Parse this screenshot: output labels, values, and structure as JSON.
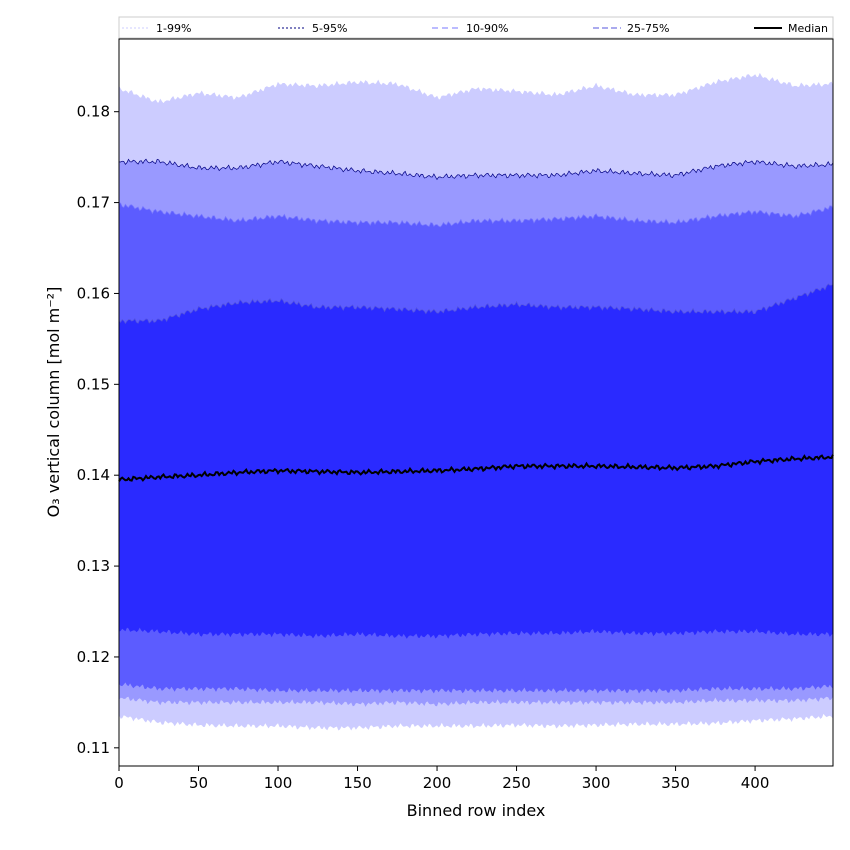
{
  "chart_data": {
    "type": "area",
    "xlabel": "Binned row index",
    "ylabel": "O₃ vertical column [mol m⁻²]",
    "xlim": [
      0,
      449
    ],
    "ylim": [
      0.108,
      0.188
    ],
    "x_ticks": [
      0,
      50,
      100,
      150,
      200,
      250,
      300,
      350,
      400
    ],
    "y_ticks": [
      0.11,
      0.12,
      0.13,
      0.14,
      0.15,
      0.16,
      0.17,
      0.18
    ],
    "y_tick_labels": [
      "0.11",
      "0.12",
      "0.13",
      "0.14",
      "0.15",
      "0.16",
      "0.17",
      "0.18"
    ],
    "legend_position": "top, horizontal",
    "x": [
      0,
      25,
      50,
      75,
      100,
      125,
      150,
      175,
      200,
      225,
      250,
      275,
      300,
      325,
      350,
      375,
      400,
      425,
      449
    ],
    "bands": [
      {
        "name": "1-99%",
        "color": "#ccccff",
        "line_color": "#ccccff",
        "dash": "2,2",
        "lower": [
          0.1135,
          0.1128,
          0.1125,
          0.1124,
          0.1124,
          0.1122,
          0.1122,
          0.1124,
          0.1124,
          0.1124,
          0.1125,
          0.1124,
          0.1125,
          0.1126,
          0.1126,
          0.1127,
          0.113,
          0.1132,
          0.1135
        ],
        "upper": [
          0.1825,
          0.181,
          0.182,
          0.1815,
          0.183,
          0.1828,
          0.1832,
          0.183,
          0.1815,
          0.1825,
          0.1822,
          0.1818,
          0.1828,
          0.1818,
          0.1818,
          0.1832,
          0.184,
          0.1828,
          0.183
        ]
      },
      {
        "name": "5-95%",
        "color": "#9999ff",
        "line_color": "#000080",
        "dash": "2,2",
        "lower": [
          0.1155,
          0.115,
          0.115,
          0.115,
          0.115,
          0.115,
          0.1148,
          0.115,
          0.1148,
          0.115,
          0.115,
          0.115,
          0.115,
          0.115,
          0.115,
          0.1152,
          0.1152,
          0.1152,
          0.1155
        ],
        "upper": [
          0.1745,
          0.1745,
          0.1738,
          0.1738,
          0.1745,
          0.174,
          0.1735,
          0.1732,
          0.1728,
          0.173,
          0.173,
          0.173,
          0.1735,
          0.1732,
          0.173,
          0.174,
          0.1745,
          0.174,
          0.1742
        ]
      },
      {
        "name": "10-90%",
        "color": "#5c5cff",
        "line_color": "#7777ff",
        "dash": "6,4",
        "lower": [
          0.117,
          0.1165,
          0.1165,
          0.1165,
          0.1163,
          0.1163,
          0.1163,
          0.1163,
          0.1163,
          0.1163,
          0.1163,
          0.1163,
          0.1163,
          0.1163,
          0.1163,
          0.1165,
          0.1165,
          0.1165,
          0.1168
        ],
        "upper": [
          0.1698,
          0.169,
          0.1685,
          0.168,
          0.1685,
          0.168,
          0.1678,
          0.1678,
          0.1675,
          0.168,
          0.168,
          0.1682,
          0.1685,
          0.168,
          0.1678,
          0.1685,
          0.169,
          0.1685,
          0.1695
        ]
      },
      {
        "name": "25-75%",
        "color": "#2a2aff",
        "line_color": "#5555dd",
        "dash": "6,3",
        "lower": [
          0.123,
          0.1228,
          0.1225,
          0.1225,
          0.1225,
          0.1223,
          0.1225,
          0.1223,
          0.1223,
          0.1225,
          0.1226,
          0.1226,
          0.1228,
          0.1226,
          0.1226,
          0.1228,
          0.1228,
          0.1225,
          0.1225
        ],
        "upper": [
          0.157,
          0.157,
          0.1583,
          0.159,
          0.1592,
          0.1585,
          0.1585,
          0.1583,
          0.158,
          0.1585,
          0.1588,
          0.1585,
          0.1585,
          0.1583,
          0.158,
          0.158,
          0.158,
          0.1595,
          0.161
        ]
      }
    ],
    "median": {
      "name": "Median",
      "color": "#000000",
      "values": [
        0.1395,
        0.1398,
        0.14,
        0.1403,
        0.1405,
        0.1404,
        0.1403,
        0.1404,
        0.1405,
        0.1407,
        0.141,
        0.141,
        0.141,
        0.1409,
        0.1408,
        0.141,
        0.1415,
        0.1418,
        0.142
      ]
    },
    "legend": [
      "1-99%",
      "5-95%",
      "10-90%",
      "25-75%",
      "Median"
    ]
  }
}
